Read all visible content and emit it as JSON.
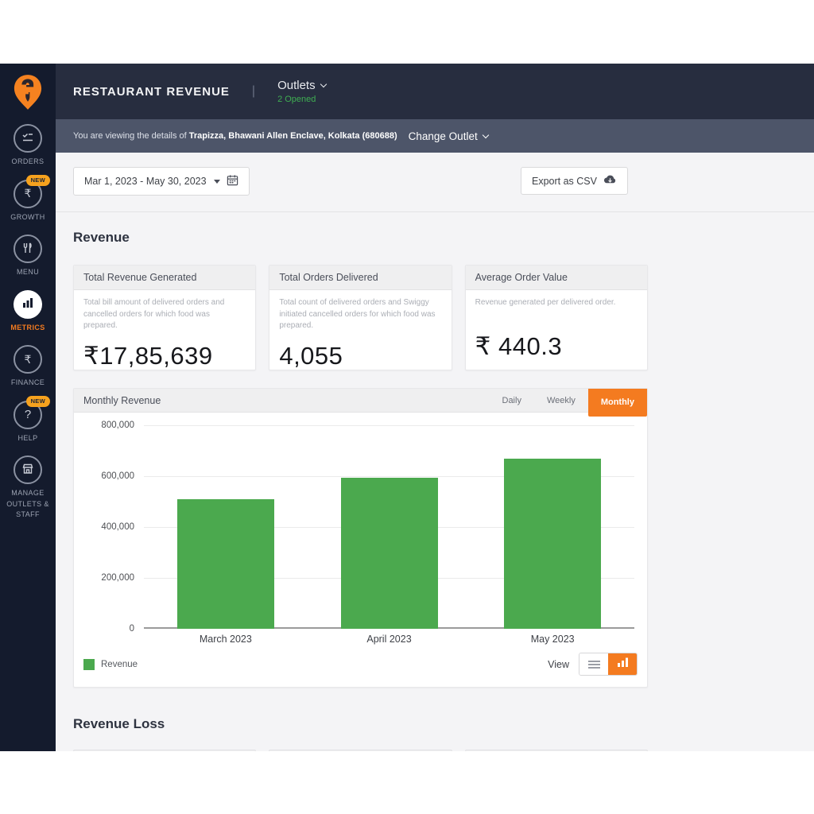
{
  "header": {
    "title": "RESTAURANT REVENUE",
    "outlets_label": "Outlets",
    "outlets_status": "2 Opened"
  },
  "outlet_banner": {
    "prefix": "You are viewing the details of",
    "outlet": "Trapizza, Bhawani Allen Enclave, Kolkata (680688)",
    "change_outlet_label": "Change Outlet"
  },
  "toolbar": {
    "date_range": "Mar 1, 2023 - May 30, 2023",
    "export_label": "Export as CSV"
  },
  "sidebar": {
    "items": [
      {
        "label": "ORDERS",
        "icon": "orders-icon",
        "badge": "",
        "active": false
      },
      {
        "label": "GROWTH",
        "icon": "rupee-icon",
        "badge": "NEW",
        "active": false
      },
      {
        "label": "MENU",
        "icon": "cutlery-icon",
        "badge": "",
        "active": false
      },
      {
        "label": "METRICS",
        "icon": "bar-chart-icon",
        "badge": "",
        "active": true
      },
      {
        "label": "FINANCE",
        "icon": "rupee-icon",
        "badge": "",
        "active": false
      },
      {
        "label": "HELP",
        "icon": "question-icon",
        "badge": "NEW",
        "active": false
      },
      {
        "label": "MANAGE OUTLETS & STAFF",
        "icon": "storefront-icon",
        "badge": "",
        "active": false
      }
    ]
  },
  "revenue_section": {
    "title": "Revenue",
    "cards": [
      {
        "title": "Total Revenue Generated",
        "description": "Total bill amount of delivered orders and cancelled orders for which food was prepared.",
        "value": "₹17,85,639"
      },
      {
        "title": "Total Orders Delivered",
        "description": "Total count of delivered orders and Swiggy initiated cancelled orders for which food was prepared.",
        "value": "4,055"
      },
      {
        "title": "Average Order Value",
        "description": "Revenue generated per delivered order.",
        "value": "₹ 440.3"
      }
    ]
  },
  "chart_card": {
    "title": "Monthly Revenue",
    "tabs": [
      "Daily",
      "Weekly",
      "Monthly"
    ],
    "active_tab": "Monthly",
    "legend_label": "Revenue",
    "view_label": "View"
  },
  "chart_data": {
    "type": "bar",
    "title": "Monthly Revenue",
    "categories": [
      "March 2023",
      "April 2023",
      "May 2023"
    ],
    "series": [
      {
        "name": "Revenue",
        "values": [
          510000,
          595000,
          670000
        ],
        "color": "#4ba94e"
      }
    ],
    "ylim": [
      0,
      800000
    ],
    "yticks": [
      "800,000",
      "600,000",
      "400,000",
      "200,000",
      "0"
    ],
    "grid": true,
    "legend_position": "bottom-left"
  },
  "revenue_loss_section": {
    "title": "Revenue Loss"
  },
  "colors": {
    "accent_orange": "#f47b20",
    "bar_green": "#4ba94e",
    "status_green": "#3fae52",
    "sidebar_bg": "#141b2d",
    "header_bg": "#272d3f",
    "banner_bg": "#4d5569",
    "content_bg": "#f4f4f6"
  }
}
